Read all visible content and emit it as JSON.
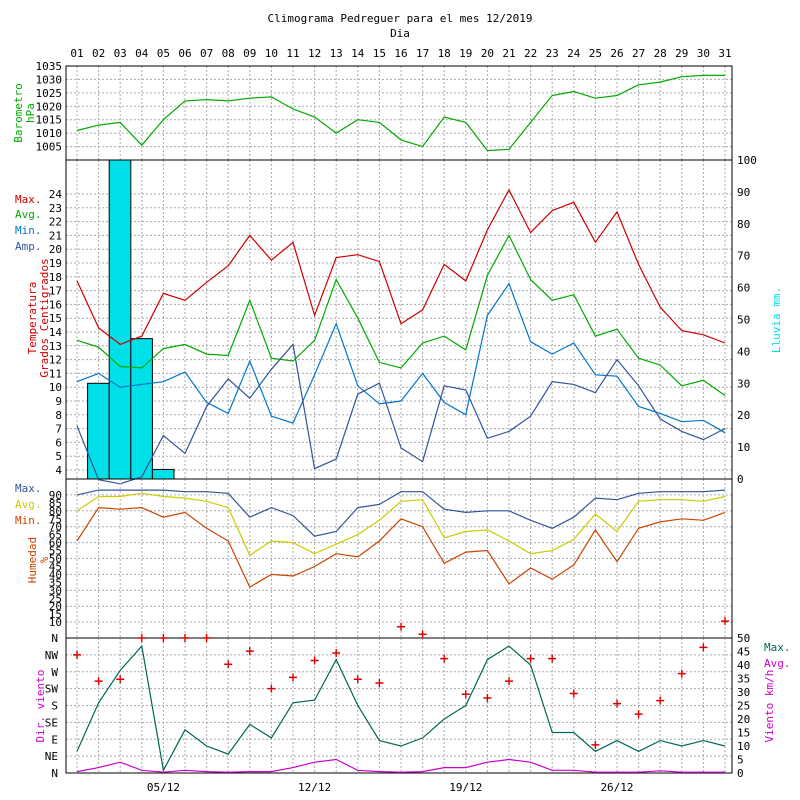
{
  "title": "Climograma Pedreguer para el mes 12/2019",
  "subtitle": "Dia",
  "days": [
    "01",
    "02",
    "03",
    "04",
    "05",
    "06",
    "07",
    "08",
    "09",
    "10",
    "11",
    "12",
    "13",
    "14",
    "15",
    "16",
    "17",
    "18",
    "19",
    "20",
    "21",
    "22",
    "23",
    "24",
    "25",
    "26",
    "27",
    "28",
    "29",
    "30",
    "31"
  ],
  "bottom_ticks": [
    "05/12",
    "12/12",
    "19/12",
    "26/12"
  ],
  "colors": {
    "red": "#cc0000",
    "green": "#00aa00",
    "blue": "#0077cc",
    "navy": "#335599",
    "cyan": "#00e0e8",
    "gold": "#cccc00",
    "brown": "#cc4400",
    "teal": "#006655",
    "magenta": "#cc00cc",
    "grid": "#aaaaaa"
  },
  "chart_data": [
    {
      "type": "line",
      "panel": "barometer",
      "ylabel": [
        "Barometro",
        "hPa"
      ],
      "ylim": [
        1000,
        1035
      ],
      "yticks": [
        1005,
        1010,
        1015,
        1020,
        1025,
        1030,
        1035
      ],
      "series": [
        {
          "values": [
            1011,
            1013,
            1014,
            1005.5,
            1015,
            1022,
            1022.5,
            1022,
            1023,
            1023.5,
            1019,
            1016,
            1010,
            1015,
            1014,
            1007.5,
            1005,
            1016,
            1014,
            1003.5,
            1004,
            1014,
            1024,
            1025.5,
            1023,
            1024,
            1028,
            1029,
            1031,
            1031.5,
            1031.5
          ]
        }
      ]
    },
    {
      "type": "line",
      "panel": "temperature",
      "ylabel_left": [
        "Temperatura",
        "Grados Centigrados"
      ],
      "ylabel_right": "Lluvia mm.",
      "ylim": [
        3,
        25
      ],
      "ylim_right": [
        0,
        100
      ],
      "legend": [
        "Max.",
        "Avg.",
        "Min.",
        "Amp."
      ],
      "series": [
        {
          "name": "Max.",
          "values": [
            17.7,
            14.3,
            13.1,
            13.7,
            16.8,
            16.3,
            17.6,
            18.8,
            21.0,
            19.2,
            20.5,
            15.2,
            19.4,
            19.6,
            19.1,
            14.6,
            15.6,
            18.9,
            17.7,
            21.4,
            24.3,
            21.2,
            22.8,
            23.4,
            20.5,
            22.7,
            18.9,
            15.8,
            14.1,
            13.8,
            13.2
          ]
        },
        {
          "name": "Avg.",
          "values": [
            13.4,
            12.9,
            11.5,
            11.4,
            12.8,
            13.1,
            12.4,
            12.3,
            16.3,
            12.1,
            11.9,
            13.4,
            17.8,
            15.0,
            11.8,
            11.4,
            13.2,
            13.7,
            12.7,
            18.1,
            21.0,
            17.8,
            16.3,
            16.7,
            13.7,
            14.2,
            12.1,
            11.6,
            10.1,
            10.5,
            9.4
          ]
        },
        {
          "name": "Min.",
          "values": [
            10.4,
            11.0,
            10.0,
            10.2,
            10.4,
            11.1,
            8.9,
            8.1,
            11.9,
            7.9,
            7.4,
            10.9,
            14.6,
            10.1,
            8.8,
            9.0,
            11.0,
            8.9,
            8.0,
            15.2,
            17.5,
            13.3,
            12.4,
            13.2,
            10.9,
            10.8,
            8.6,
            8.1,
            7.5,
            7.6,
            6.7
          ]
        },
        {
          "name": "Amp.",
          "values": [
            7.2,
            3.3,
            3.0,
            3.5,
            6.5,
            5.2,
            8.6,
            10.6,
            9.2,
            11.3,
            13.1,
            4.1,
            4.8,
            9.5,
            10.3,
            5.6,
            4.6,
            10.1,
            9.8,
            6.3,
            6.8,
            7.9,
            10.4,
            10.2,
            9.6,
            12.0,
            10.1,
            7.7,
            6.8,
            6.2,
            7.0
          ]
        }
      ],
      "rain_mm": {
        "values": [
          0,
          30,
          100,
          44,
          3,
          0,
          0,
          0,
          0,
          0,
          0,
          0,
          0,
          0,
          0,
          0,
          0,
          0,
          0,
          0,
          0,
          0,
          0,
          0,
          0,
          0,
          0,
          0,
          0,
          0,
          0
        ]
      }
    },
    {
      "type": "line",
      "panel": "humidity",
      "ylabel": [
        "Humedad",
        "%"
      ],
      "ylim": [
        0,
        100
      ],
      "legend": [
        "Max.",
        "Avg.",
        "Min."
      ],
      "series": [
        {
          "name": "Max.",
          "values": [
            90,
            93,
            93,
            93,
            93,
            92,
            92,
            91,
            76,
            82,
            77,
            64,
            67,
            82,
            84,
            92,
            92,
            81,
            79,
            80,
            80,
            74,
            69,
            76,
            88,
            87,
            91,
            92,
            92,
            92,
            93
          ]
        },
        {
          "name": "Avg.",
          "values": [
            80,
            89,
            89,
            91,
            89,
            88,
            86,
            82,
            52,
            61,
            60,
            53,
            59,
            65,
            74,
            86,
            87,
            63,
            67,
            68,
            61,
            53,
            55,
            62,
            78,
            67,
            86,
            87,
            87,
            86,
            89
          ]
        },
        {
          "name": "Min.",
          "values": [
            61,
            82,
            81,
            82,
            76,
            79,
            69,
            61,
            32,
            40,
            39,
            45,
            53,
            51,
            61,
            75,
            70,
            47,
            54,
            55,
            34,
            44,
            37,
            46,
            68,
            48,
            69,
            73,
            75,
            74,
            79
          ]
        }
      ]
    },
    {
      "type": "line",
      "panel": "wind",
      "ylabel_left": "Dir. viento",
      "ylabel_right": "Viento km/h",
      "dir_labels": [
        "N",
        "NE",
        "E",
        "SE",
        "S",
        "SW",
        "W",
        "NW",
        "N"
      ],
      "ylim_right": [
        0,
        50
      ],
      "legend": [
        "Max.",
        "Avg."
      ],
      "direction_deg": [
        315,
        245,
        250,
        360,
        360,
        360,
        360,
        290,
        325,
        225,
        255,
        300,
        320,
        250,
        240,
        390,
        370,
        305,
        210,
        200,
        245,
        305,
        305,
        212,
        75,
        185,
        157,
        193,
        265,
        335,
        405
      ],
      "series": [
        {
          "name": "Max.",
          "values": [
            8,
            26,
            38,
            47,
            1,
            16,
            10,
            7,
            18,
            13,
            26,
            27,
            42,
            25,
            12,
            10,
            13,
            20,
            25,
            42,
            47,
            40,
            15,
            15,
            8,
            12,
            8,
            12,
            10,
            12,
            10
          ]
        },
        {
          "name": "Avg.",
          "values": [
            0.5,
            2,
            4,
            1,
            0.3,
            1,
            0.5,
            0.3,
            0.5,
            0.5,
            2,
            4,
            5,
            1,
            0.5,
            0.3,
            0.5,
            2,
            2,
            4,
            5,
            4,
            1,
            1,
            0.3,
            0.3,
            0.3,
            0.8,
            0.3,
            0.3,
            0.3
          ]
        }
      ]
    }
  ]
}
